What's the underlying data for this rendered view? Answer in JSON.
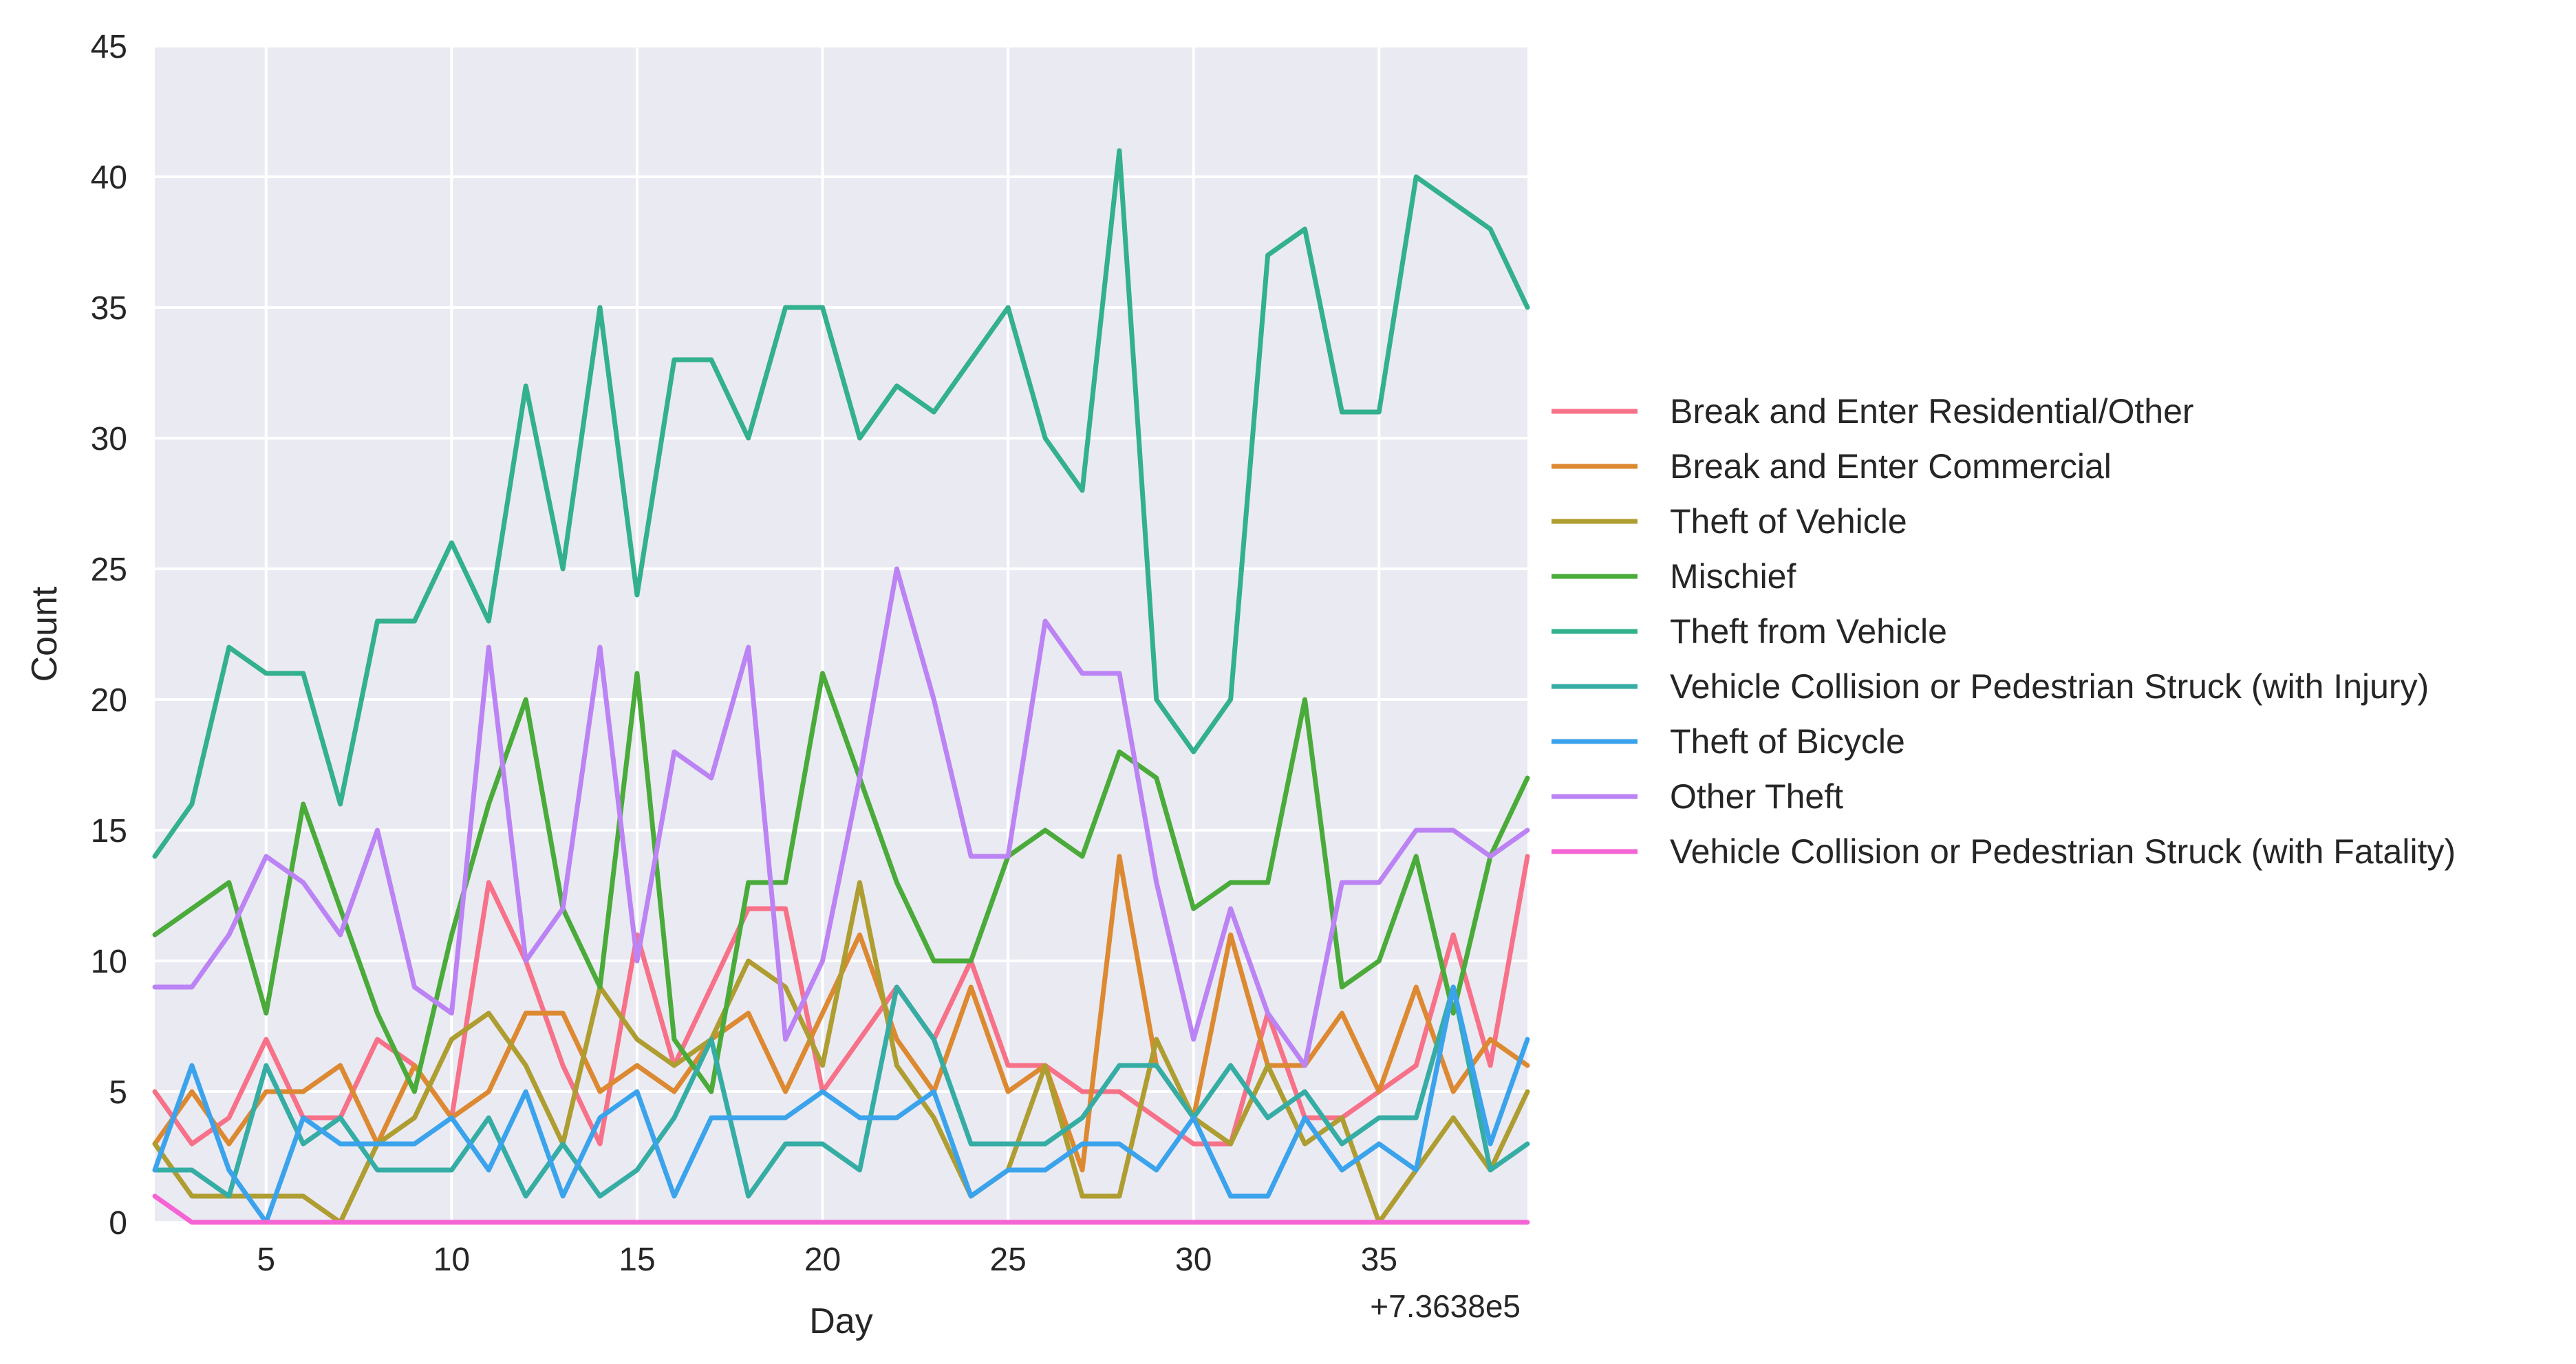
{
  "chart_data": {
    "type": "line",
    "title": "",
    "xlabel": "Day",
    "ylabel": "Count",
    "x_offset_label": "+7.3638e5",
    "xlim": [
      2,
      39
    ],
    "ylim": [
      0,
      45
    ],
    "x_ticks": [
      5,
      10,
      15,
      20,
      25,
      30,
      35
    ],
    "y_ticks": [
      0,
      5,
      10,
      15,
      20,
      25,
      30,
      35,
      40,
      45
    ],
    "grid": true,
    "background": "#eaeaf2",
    "legend_position": "right",
    "x": [
      2,
      3,
      4,
      5,
      6,
      7,
      8,
      9,
      10,
      11,
      12,
      13,
      14,
      15,
      16,
      17,
      18,
      19,
      20,
      21,
      22,
      23,
      24,
      25,
      26,
      27,
      28,
      29,
      30,
      31,
      32,
      33,
      34,
      35,
      36,
      37,
      38,
      39
    ],
    "series": [
      {
        "name": "Break and Enter Residential/Other",
        "color": "#f77189",
        "values": [
          5,
          3,
          4,
          7,
          4,
          4,
          7,
          6,
          4,
          13,
          10,
          6,
          3,
          11,
          6,
          9,
          12,
          12,
          5,
          7,
          9,
          7,
          10,
          6,
          6,
          5,
          5,
          4,
          3,
          3,
          8,
          4,
          4,
          5,
          6,
          11,
          6,
          14
        ]
      },
      {
        "name": "Break and Enter Commercial",
        "color": "#dc8932",
        "values": [
          3,
          5,
          3,
          5,
          5,
          6,
          3,
          6,
          4,
          5,
          8,
          8,
          5,
          6,
          5,
          7,
          8,
          5,
          8,
          11,
          7,
          5,
          9,
          5,
          6,
          2,
          14,
          6,
          4,
          11,
          6,
          6,
          8,
          5,
          9,
          5,
          7,
          6
        ]
      },
      {
        "name": "Theft of Vehicle",
        "color": "#ae9d31",
        "values": [
          3,
          1,
          1,
          1,
          1,
          0,
          3,
          4,
          7,
          8,
          6,
          3,
          9,
          7,
          6,
          7,
          10,
          9,
          6,
          13,
          6,
          4,
          1,
          2,
          6,
          1,
          1,
          7,
          4,
          3,
          6,
          3,
          4,
          0,
          2,
          4,
          2,
          5
        ]
      },
      {
        "name": "Mischief",
        "color": "#4aab3a",
        "values": [
          11,
          12,
          13,
          8,
          16,
          12,
          8,
          5,
          11,
          16,
          20,
          12,
          9,
          21,
          7,
          5,
          13,
          13,
          21,
          17,
          13,
          10,
          10,
          14,
          15,
          14,
          18,
          17,
          12,
          13,
          13,
          20,
          9,
          10,
          14,
          8,
          14,
          17
        ]
      },
      {
        "name": "Theft from Vehicle",
        "color": "#33b08d",
        "values": [
          14,
          16,
          22,
          21,
          21,
          16,
          23,
          23,
          26,
          23,
          32,
          25,
          35,
          24,
          33,
          33,
          30,
          35,
          35,
          30,
          32,
          31,
          33,
          35,
          30,
          28,
          41,
          20,
          18,
          20,
          37,
          38,
          31,
          31,
          40,
          39,
          38,
          35
        ]
      },
      {
        "name": "Vehicle Collision or Pedestrian Struck (with Injury)",
        "color": "#36ada4",
        "values": [
          2,
          2,
          1,
          6,
          3,
          4,
          2,
          2,
          2,
          4,
          1,
          3,
          1,
          2,
          4,
          7,
          1,
          3,
          3,
          2,
          9,
          7,
          3,
          3,
          3,
          4,
          6,
          6,
          4,
          6,
          4,
          5,
          3,
          4,
          4,
          9,
          2,
          3
        ]
      },
      {
        "name": "Theft of Bicycle",
        "color": "#3ba3ec",
        "values": [
          2,
          6,
          2,
          0,
          4,
          3,
          3,
          3,
          4,
          2,
          5,
          1,
          4,
          5,
          1,
          4,
          4,
          4,
          5,
          4,
          4,
          5,
          1,
          2,
          2,
          3,
          3,
          2,
          4,
          1,
          1,
          4,
          2,
          3,
          2,
          9,
          3,
          7
        ]
      },
      {
        "name": "Other Theft",
        "color": "#bb83f4",
        "values": [
          9,
          9,
          11,
          14,
          13,
          11,
          15,
          9,
          8,
          22,
          10,
          12,
          22,
          10,
          18,
          17,
          22,
          7,
          10,
          17,
          25,
          20,
          14,
          14,
          23,
          21,
          21,
          13,
          7,
          12,
          8,
          6,
          13,
          13,
          15,
          15,
          14,
          15
        ]
      },
      {
        "name": "Vehicle Collision or Pedestrian Struck (with Fatality)",
        "color": "#f564d4",
        "values": [
          1,
          0,
          0,
          0,
          0,
          0,
          0,
          0,
          0,
          0,
          0,
          0,
          0,
          0,
          0,
          0,
          0,
          0,
          0,
          0,
          0,
          0,
          0,
          0,
          0,
          0,
          0,
          0,
          0,
          0,
          0,
          0,
          0,
          0,
          0,
          0,
          0,
          0
        ]
      }
    ]
  }
}
